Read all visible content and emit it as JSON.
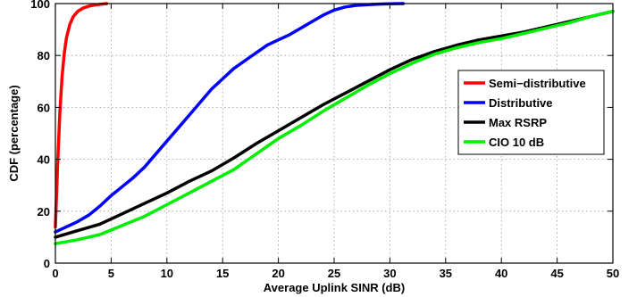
{
  "chart_data": {
    "type": "line",
    "xlabel": "Average Uplink SINR (dB)",
    "ylabel": "CDF (percentage)",
    "xlim": [
      0,
      50
    ],
    "ylim": [
      0,
      100
    ],
    "xticks": [
      0,
      5,
      10,
      15,
      20,
      25,
      30,
      35,
      40,
      45,
      50
    ],
    "yticks": [
      0,
      20,
      40,
      60,
      80,
      100
    ],
    "grid": true,
    "legend_position": "right",
    "series": [
      {
        "name": "Semi−distributive",
        "color": "#ff0000",
        "x": [
          0,
          0.2,
          0.4,
          0.6,
          0.8,
          1.0,
          1.3,
          1.6,
          2.0,
          2.5,
          3.0,
          3.5,
          4.0,
          4.6
        ],
        "y": [
          14,
          38,
          58,
          72,
          81,
          87,
          92,
          95,
          97,
          98.3,
          99.0,
          99.4,
          99.7,
          100
        ]
      },
      {
        "name": "Distributive",
        "color": "#0000ff",
        "x": [
          0,
          1,
          2,
          3,
          4,
          5,
          6,
          7,
          8,
          9,
          10,
          11,
          12,
          13,
          14,
          15,
          16,
          17,
          18,
          19,
          20,
          21,
          22,
          23,
          24,
          25,
          26,
          27,
          28,
          29,
          30,
          31.2
        ],
        "y": [
          12,
          14,
          16,
          18.5,
          22,
          26,
          29.5,
          33,
          37,
          42,
          47,
          52,
          57,
          62,
          67,
          71,
          75,
          78,
          81,
          84,
          86,
          88,
          90.5,
          93,
          95.5,
          97.5,
          98.7,
          99.3,
          99.6,
          99.8,
          99.9,
          100
        ]
      },
      {
        "name": "Max RSRP",
        "color": "#000000",
        "x": [
          0,
          2,
          4,
          6,
          8,
          10,
          12,
          14,
          16,
          18,
          20,
          22,
          24,
          26,
          28,
          30,
          32,
          34,
          36,
          38,
          40,
          42,
          44,
          46,
          48,
          50
        ],
        "y": [
          10,
          12.5,
          15,
          19,
          23,
          27,
          31.5,
          35.5,
          40.5,
          46,
          51,
          56,
          61,
          65.5,
          70,
          74.5,
          78.5,
          81.5,
          84,
          86,
          87.5,
          89,
          91,
          93,
          95,
          97
        ]
      },
      {
        "name": "CIO 10 dB",
        "color": "#00ee00",
        "x": [
          0,
          2,
          4,
          6,
          8,
          10,
          12,
          14,
          16,
          18,
          20,
          22,
          24,
          26,
          28,
          30,
          32,
          34,
          36,
          38,
          40,
          42,
          44,
          46,
          48,
          50
        ],
        "y": [
          7.5,
          9,
          11,
          14.5,
          18,
          22.5,
          27,
          31.5,
          36,
          42,
          48,
          53,
          58.5,
          63.5,
          68.5,
          73,
          77,
          80.5,
          83,
          85,
          86.5,
          88.5,
          90.5,
          92.5,
          95,
          97
        ]
      }
    ]
  }
}
